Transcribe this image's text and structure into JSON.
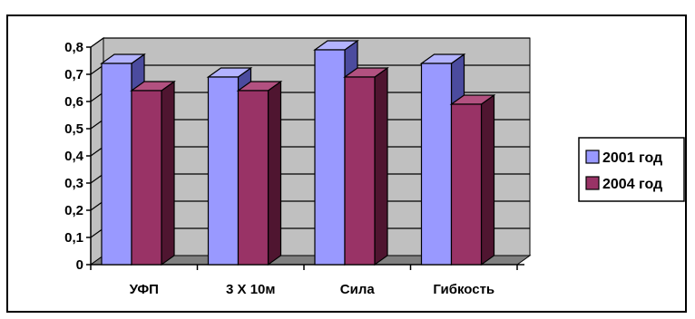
{
  "chart_data": {
    "type": "bar",
    "categories": [
      "УФП",
      "3 Х 10м",
      "Сила",
      "Гибкость"
    ],
    "series": [
      {
        "name": "2001 год",
        "values": [
          0.74,
          0.69,
          0.79,
          0.74
        ]
      },
      {
        "name": "2004 год",
        "values": [
          0.64,
          0.64,
          0.69,
          0.59
        ]
      }
    ],
    "y_ticks": [
      "0",
      "0,1",
      "0,2",
      "0,3",
      "0,4",
      "0,5",
      "0,6",
      "0,7",
      "0,8"
    ],
    "ylim": [
      0,
      0.8
    ],
    "grid": true,
    "legend_position": "right",
    "three_d": true,
    "colors": {
      "series_fronts": [
        "#9999ff",
        "#993366"
      ],
      "series_sides": [
        "#4b4b9e",
        "#4f1530"
      ],
      "series_tops": [
        "#b3b3ff",
        "#b25180"
      ],
      "plot_back_wall": "#c0c0c0",
      "floor": "#808080",
      "border": "#000000"
    }
  }
}
